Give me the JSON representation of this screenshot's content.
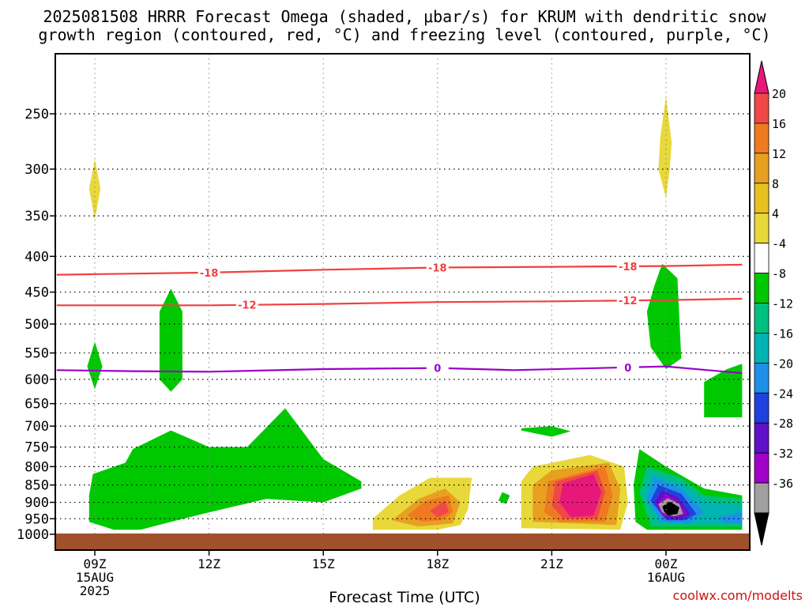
{
  "title_line1": "2025081508 HRRR Forecast Omega (shaded, μbar/s) for KRUM with dendritic snow",
  "title_line2": "growth region (contoured, red, °C) and freezing level (contoured, purple, °C)",
  "xlabel": "Forecast Time (UTC)",
  "credit": "coolwx.com/modelts",
  "chart_data": {
    "type": "heatmap",
    "y_axis": {
      "label": "",
      "scale": "log-pressure",
      "ticks": [
        250,
        300,
        350,
        400,
        450,
        500,
        550,
        600,
        650,
        700,
        750,
        800,
        850,
        900,
        950,
        1000
      ],
      "range": [
        200,
        1025
      ],
      "inverted": true
    },
    "x_axis": {
      "ticks": [
        {
          "hour": 9,
          "label": "09Z",
          "sub": [
            "15AUG",
            "2025"
          ]
        },
        {
          "hour": 12,
          "label": "12Z",
          "sub": []
        },
        {
          "hour": 15,
          "label": "15Z",
          "sub": []
        },
        {
          "hour": 18,
          "label": "18Z",
          "sub": []
        },
        {
          "hour": 21,
          "label": "21Z",
          "sub": []
        },
        {
          "hour": 24,
          "label": "00Z",
          "sub": [
            "16AUG"
          ]
        }
      ],
      "range_hours": [
        8,
        26
      ]
    },
    "colorbar": {
      "ticks": [
        "20",
        "16",
        "12",
        "8",
        "4",
        "-4",
        "-8",
        "-12",
        "-16",
        "-20",
        "-24",
        "-28",
        "-32",
        "-36"
      ],
      "colors": [
        "#e8187a",
        "#f04848",
        "#f07a20",
        "#e8a020",
        "#e8c020",
        "#e8d83a",
        "#ffffff",
        "#00c800",
        "#00c080",
        "#00b4b4",
        "#1e90e8",
        "#2040e0",
        "#6010c8",
        "#a000c8",
        "#a0a0a0",
        "#000000"
      ]
    },
    "contours": [
      {
        "label": "-18",
        "color": "#f04040",
        "points": [
          [
            8,
            425
          ],
          [
            12,
            422
          ],
          [
            15,
            418
          ],
          [
            18,
            415
          ],
          [
            21,
            414
          ],
          [
            24,
            413
          ],
          [
            26,
            411
          ]
        ],
        "label_hours": [
          12,
          18,
          23
        ]
      },
      {
        "label": "-12",
        "color": "#f04040",
        "points": [
          [
            8,
            470
          ],
          [
            12,
            470
          ],
          [
            15,
            468
          ],
          [
            18,
            465
          ],
          [
            21,
            464
          ],
          [
            24,
            462
          ],
          [
            26,
            460
          ]
        ],
        "label_hours": [
          13,
          23
        ]
      },
      {
        "label": "0",
        "color": "#9a00c8",
        "points": [
          [
            8,
            582
          ],
          [
            10,
            584
          ],
          [
            12,
            585
          ],
          [
            15,
            580
          ],
          [
            18,
            578
          ],
          [
            20,
            582
          ],
          [
            24,
            575
          ],
          [
            26,
            588
          ]
        ],
        "label_hours": [
          18,
          23
        ]
      }
    ],
    "shaded_regions": [
      {
        "category": "4 to 8",
        "color": "#e8d83a",
        "points": [
          [
            9,
            290
          ],
          [
            9.15,
            320
          ],
          [
            9,
            355
          ],
          [
            8.85,
            320
          ]
        ]
      },
      {
        "category": "4 to 8",
        "color": "#e8d83a",
        "points": [
          [
            24,
            236
          ],
          [
            24.15,
            275
          ],
          [
            24.1,
            300
          ],
          [
            24,
            330
          ],
          [
            23.8,
            300
          ],
          [
            23.85,
            270
          ]
        ]
      },
      {
        "category": "-4 to -8",
        "color": "#00c800",
        "points": [
          [
            9,
            530
          ],
          [
            9.2,
            575
          ],
          [
            9,
            620
          ],
          [
            8.8,
            575
          ]
        ]
      },
      {
        "category": "-4 to -8",
        "color": "#00c800",
        "points": [
          [
            11,
            445
          ],
          [
            11.3,
            480
          ],
          [
            11.3,
            600
          ],
          [
            11,
            625
          ],
          [
            10.7,
            600
          ],
          [
            10.7,
            480
          ]
        ]
      },
      {
        "category": "-4 to -8",
        "color": "#00c800",
        "points": [
          [
            23.9,
            410
          ],
          [
            24.3,
            430
          ],
          [
            24.4,
            560
          ],
          [
            24,
            580
          ],
          [
            23.6,
            540
          ],
          [
            23.5,
            480
          ],
          [
            23.7,
            440
          ]
        ]
      },
      {
        "category": "-4 to -8",
        "color": "#00c800",
        "points": [
          [
            26,
            570
          ],
          [
            25.6,
            580
          ],
          [
            25,
            605
          ],
          [
            25,
            680
          ],
          [
            26,
            680
          ]
        ]
      },
      {
        "category": "-4 to -8",
        "color": "#00c800",
        "points": [
          [
            20.2,
            705
          ],
          [
            21,
            700
          ],
          [
            21.5,
            712
          ],
          [
            21,
            725
          ],
          [
            20.2,
            710
          ]
        ]
      },
      {
        "category": "-4 to -8",
        "color": "#00c800",
        "points": [
          [
            8.85,
            880
          ],
          [
            8.95,
            820
          ],
          [
            9.8,
            790
          ],
          [
            10,
            755
          ],
          [
            11,
            710
          ],
          [
            12,
            750
          ],
          [
            13,
            750
          ],
          [
            14,
            660
          ],
          [
            15,
            780
          ],
          [
            16,
            840
          ],
          [
            16,
            860
          ],
          [
            15,
            900
          ],
          [
            13.5,
            890
          ],
          [
            12,
            930
          ],
          [
            11,
            960
          ],
          [
            10.2,
            985
          ],
          [
            9.5,
            985
          ],
          [
            8.85,
            960
          ]
        ]
      },
      {
        "category": "-4 to -8",
        "color": "#00c800",
        "points": [
          [
            19.7,
            870
          ],
          [
            19.9,
            880
          ],
          [
            19.8,
            905
          ],
          [
            19.6,
            895
          ]
        ]
      },
      {
        "category": "-4 to -8",
        "color": "#00c800",
        "points": [
          [
            23.3,
            755
          ],
          [
            24,
            800
          ],
          [
            25,
            860
          ],
          [
            26,
            880
          ],
          [
            26,
            985
          ],
          [
            23.5,
            985
          ],
          [
            23.2,
            960
          ],
          [
            23.15,
            850
          ]
        ]
      },
      {
        "category": "4 to 8",
        "color": "#e8d83a",
        "points": [
          [
            16.3,
            950
          ],
          [
            17,
            880
          ],
          [
            17.8,
            830
          ],
          [
            18.9,
            830
          ],
          [
            18.8,
            920
          ],
          [
            18.6,
            970
          ],
          [
            18,
            985
          ],
          [
            16.3,
            985
          ]
        ]
      },
      {
        "category": "4 to 8",
        "color": "#e8d83a",
        "points": [
          [
            20.2,
            980
          ],
          [
            20.2,
            840
          ],
          [
            20.5,
            800
          ],
          [
            22,
            770
          ],
          [
            22.9,
            800
          ],
          [
            23,
            900
          ],
          [
            22.8,
            985
          ]
        ]
      },
      {
        "category": "8 to 12",
        "color": "#e8a020",
        "points": [
          [
            16.8,
            955
          ],
          [
            17.5,
            890
          ],
          [
            18.2,
            860
          ],
          [
            18.6,
            900
          ],
          [
            18.4,
            965
          ],
          [
            17.5,
            975
          ]
        ]
      },
      {
        "category": "8 to 12",
        "color": "#e8a020",
        "points": [
          [
            20.5,
            960
          ],
          [
            20.5,
            850
          ],
          [
            21,
            810
          ],
          [
            22.5,
            790
          ],
          [
            22.8,
            860
          ],
          [
            22.7,
            970
          ]
        ]
      },
      {
        "category": "12 to 16",
        "color": "#f07a20",
        "points": [
          [
            17.2,
            940
          ],
          [
            17.7,
            895
          ],
          [
            18.3,
            880
          ],
          [
            18.4,
            930
          ],
          [
            18.1,
            955
          ],
          [
            17.6,
            960
          ]
        ]
      },
      {
        "category": "12 to 16",
        "color": "#f07a20",
        "points": [
          [
            20.8,
            930
          ],
          [
            20.9,
            840
          ],
          [
            22.4,
            800
          ],
          [
            22.6,
            880
          ],
          [
            22.4,
            960
          ],
          [
            21.2,
            960
          ]
        ]
      },
      {
        "category": "16 to 20",
        "color": "#f04848",
        "points": [
          [
            17.8,
            925
          ],
          [
            18.2,
            895
          ],
          [
            18.3,
            930
          ],
          [
            18,
            945
          ]
        ]
      },
      {
        "category": "16 to 20",
        "color": "#f04848",
        "points": [
          [
            21.0,
            910
          ],
          [
            21.1,
            840
          ],
          [
            22.2,
            810
          ],
          [
            22.4,
            870
          ],
          [
            22.2,
            950
          ],
          [
            21.3,
            950
          ]
        ]
      },
      {
        "category": ">20",
        "color": "#e8187a",
        "points": [
          [
            21.2,
            900
          ],
          [
            21.3,
            845
          ],
          [
            22.1,
            820
          ],
          [
            22.3,
            870
          ],
          [
            22.1,
            940
          ],
          [
            21.5,
            945
          ]
        ]
      },
      {
        "category": "-8 to -12",
        "color": "#00c080",
        "points": [
          [
            23.3,
            870
          ],
          [
            23.5,
            800
          ],
          [
            24.4,
            830
          ],
          [
            25,
            880
          ],
          [
            26,
            890
          ],
          [
            26,
            975
          ],
          [
            23.6,
            975
          ]
        ]
      },
      {
        "category": "-12 to -16",
        "color": "#00b4b4",
        "points": [
          [
            23.4,
            880
          ],
          [
            23.6,
            815
          ],
          [
            24.4,
            845
          ],
          [
            25.1,
            900
          ],
          [
            26,
            910
          ],
          [
            26,
            965
          ],
          [
            23.8,
            965
          ]
        ]
      },
      {
        "category": "-16 to -20",
        "color": "#1e90e8",
        "points": [
          [
            23.5,
            890
          ],
          [
            23.7,
            830
          ],
          [
            24.4,
            860
          ],
          [
            25,
            930
          ],
          [
            24.6,
            965
          ],
          [
            23.9,
            960
          ]
        ]
      },
      {
        "category": "-20 to -24",
        "color": "#2040e0",
        "points": [
          [
            23.6,
            895
          ],
          [
            23.8,
            850
          ],
          [
            24.4,
            875
          ],
          [
            24.8,
            935
          ],
          [
            24.5,
            955
          ],
          [
            24,
            955
          ]
        ]
      },
      {
        "category": "-24 to -28",
        "color": "#6010c8",
        "points": [
          [
            23.7,
            900
          ],
          [
            23.9,
            865
          ],
          [
            24.3,
            885
          ],
          [
            24.65,
            935
          ],
          [
            24.4,
            950
          ],
          [
            24,
            948
          ]
        ]
      },
      {
        "category": "-28 to -32",
        "color": "#a000c8",
        "points": [
          [
            23.75,
            905
          ],
          [
            24,
            878
          ],
          [
            24.3,
            895
          ],
          [
            24.55,
            935
          ],
          [
            24.3,
            945
          ],
          [
            23.9,
            940
          ]
        ]
      },
      {
        "category": "-32 to -36",
        "color": "#a0a0a0",
        "points": [
          [
            23.8,
            905
          ],
          [
            24.05,
            888
          ],
          [
            24.35,
            905
          ],
          [
            24.45,
            935
          ],
          [
            24.2,
            942
          ],
          [
            23.9,
            930
          ]
        ]
      },
      {
        "category": "< -36",
        "color": "#000000",
        "points": [
          [
            23.9,
            912
          ],
          [
            24.1,
            898
          ],
          [
            24.35,
            915
          ],
          [
            24.3,
            935
          ],
          [
            24.05,
            940
          ],
          [
            23.95,
            928
          ]
        ]
      },
      {
        "category": "-16 to -20",
        "color": "#1e90e8",
        "points": [
          [
            25.4,
            945
          ],
          [
            26,
            930
          ],
          [
            26,
            965
          ],
          [
            25.5,
            962
          ]
        ]
      }
    ]
  }
}
